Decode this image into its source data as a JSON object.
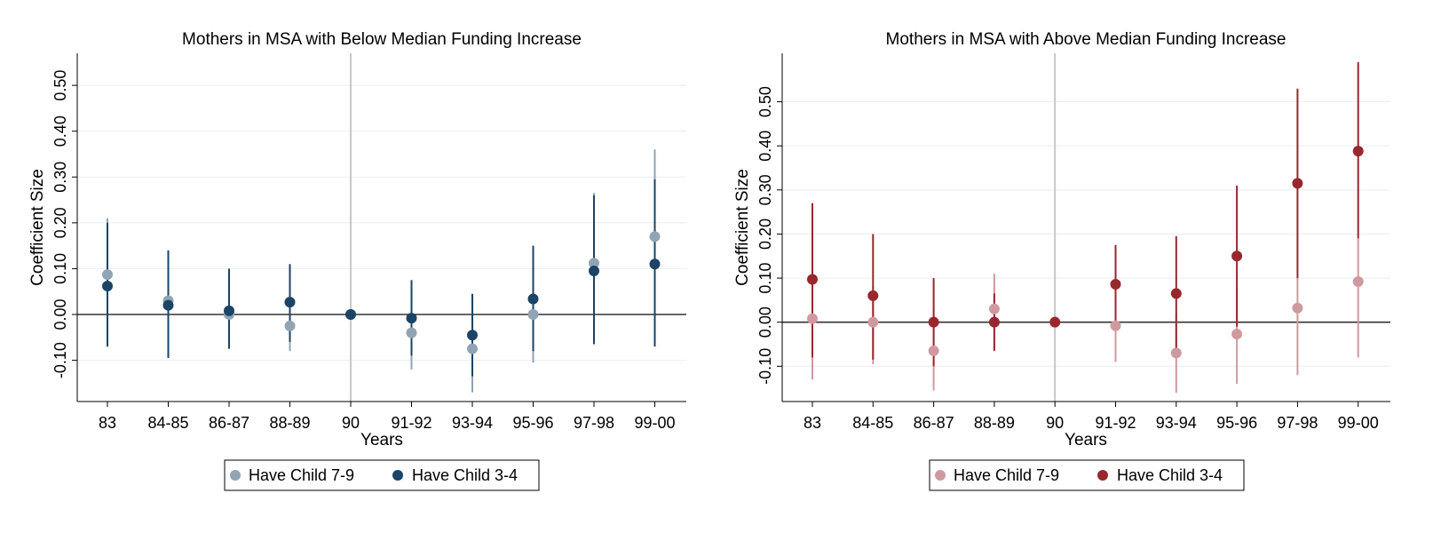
{
  "chart_data": [
    {
      "type": "scatter",
      "title": "Mothers in MSA with Below Median Funding Increase",
      "xlabel": "Years",
      "ylabel": "Coefficient Size",
      "categories": [
        "83",
        "84-85",
        "86-87",
        "88-89",
        "90",
        "91-92",
        "93-94",
        "95-96",
        "97-98",
        "99-00"
      ],
      "yticks": [
        "-0.10",
        "0.00",
        "0.10",
        "0.20",
        "0.30",
        "0.40",
        "0.50"
      ],
      "ylim": [
        -0.19,
        0.57
      ],
      "reference_category": "90",
      "series": [
        {
          "name": "Have Child 7-9",
          "color": "#90a4b4",
          "values": [
            0.087,
            0.03,
            0.0,
            -0.025,
            0.0,
            -0.04,
            -0.075,
            0.0,
            0.112,
            0.17
          ],
          "ci_low": [
            -0.07,
            -0.05,
            -0.05,
            -0.08,
            0.0,
            -0.12,
            -0.17,
            -0.105,
            -0.06,
            0.0
          ],
          "ci_high": [
            0.21,
            0.12,
            0.06,
            0.06,
            0.0,
            0.04,
            0.02,
            0.1,
            0.265,
            0.36
          ]
        },
        {
          "name": "Have Child 3-4",
          "color": "#1b4466",
          "values": [
            0.062,
            0.02,
            0.008,
            0.027,
            0.0,
            -0.008,
            -0.045,
            0.034,
            0.095,
            0.11
          ],
          "ci_low": [
            -0.07,
            -0.095,
            -0.075,
            -0.06,
            0.0,
            -0.09,
            -0.135,
            -0.08,
            -0.065,
            -0.07
          ],
          "ci_high": [
            0.2,
            0.14,
            0.1,
            0.11,
            0.0,
            0.075,
            0.045,
            0.15,
            0.26,
            0.295
          ]
        }
      ],
      "legend": "bottom"
    },
    {
      "type": "scatter",
      "title": "Mothers in MSA with Above Median Funding Increase",
      "xlabel": "Years",
      "ylabel": "Coefficient Size",
      "categories": [
        "83",
        "84-85",
        "86-87",
        "88-89",
        "90",
        "91-92",
        "93-94",
        "95-96",
        "97-98",
        "99-00"
      ],
      "yticks": [
        "-0.10",
        "0.00",
        "0.10",
        "0.20",
        "0.30",
        "0.40",
        "0.50"
      ],
      "ylim": [
        -0.18,
        0.61
      ],
      "reference_category": "90",
      "series": [
        {
          "name": "Have Child 7-9",
          "color": "#cf9a9f",
          "values": [
            0.008,
            0.0,
            -0.065,
            0.03,
            0.0,
            -0.008,
            -0.07,
            -0.027,
            0.032,
            0.092
          ],
          "ci_low": [
            -0.13,
            -0.095,
            -0.155,
            -0.065,
            0.0,
            -0.09,
            -0.16,
            -0.14,
            -0.12,
            -0.08
          ],
          "ci_high": [
            0.12,
            0.08,
            0.03,
            0.11,
            0.0,
            0.08,
            0.02,
            0.08,
            0.1,
            0.19
          ]
        },
        {
          "name": "Have Child 3-4",
          "color": "#98272e",
          "values": [
            0.097,
            0.06,
            0.0,
            0.0,
            0.0,
            0.086,
            0.065,
            0.15,
            0.315,
            0.388
          ],
          "ci_low": [
            -0.08,
            -0.085,
            -0.1,
            -0.065,
            0.0,
            0.0,
            -0.07,
            -0.01,
            0.1,
            0.19
          ],
          "ci_high": [
            0.27,
            0.2,
            0.1,
            0.065,
            0.0,
            0.175,
            0.195,
            0.31,
            0.53,
            0.59
          ]
        }
      ],
      "legend": "bottom"
    }
  ]
}
